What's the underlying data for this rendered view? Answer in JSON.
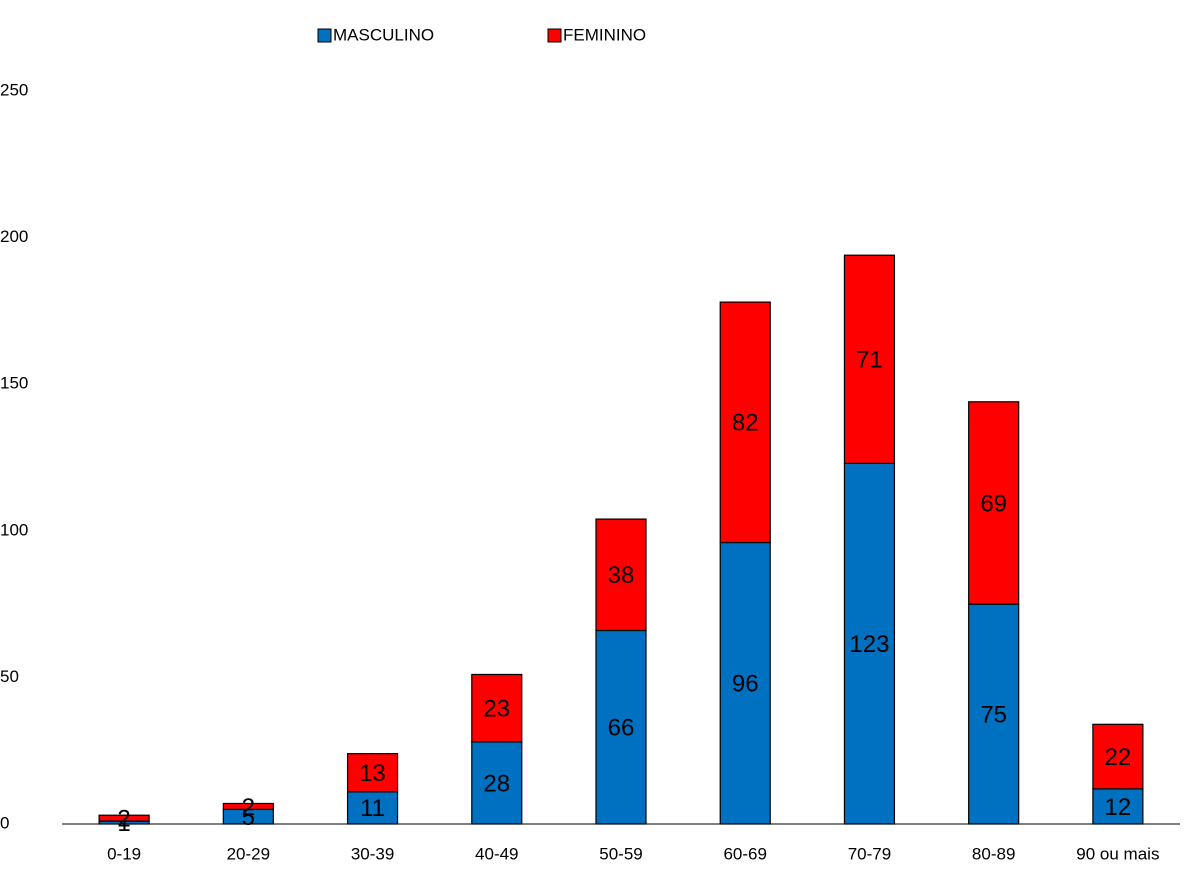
{
  "chart_data": {
    "type": "stacked_bar",
    "categories": [
      "0-19",
      "20-29",
      "30-39",
      "40-49",
      "50-59",
      "60-69",
      "70-79",
      "80-89",
      "90 ou mais"
    ],
    "series": [
      {
        "name": "MASCULINO",
        "color": "#0070c0",
        "values": [
          1,
          5,
          11,
          28,
          66,
          96,
          123,
          75,
          12
        ]
      },
      {
        "name": "FEMININO",
        "color": "#ff0000",
        "values": [
          2,
          2,
          13,
          23,
          38,
          82,
          71,
          69,
          22
        ]
      }
    ],
    "ylim": [
      0,
      250
    ],
    "yticks": [
      0,
      50,
      100,
      150,
      200,
      250
    ],
    "grid": false,
    "legend": "top"
  }
}
